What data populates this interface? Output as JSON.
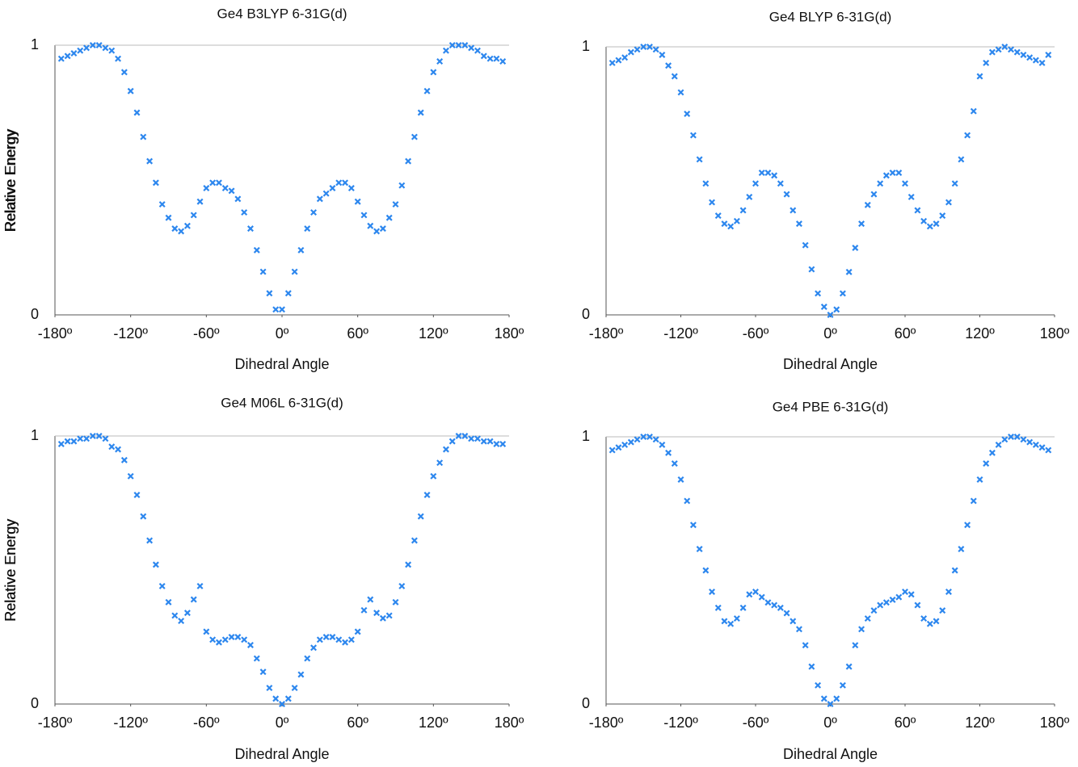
{
  "chart_data": [
    {
      "type": "scatter",
      "title": "Ge4 B3LYP 6-31G(d)",
      "x_label": "Dihedral Angle",
      "y_label": "Relative Energy",
      "color": "#2d87ee",
      "xlim": [
        -180,
        180
      ],
      "ylim": [
        0,
        1
      ],
      "xticks": [
        {
          "value": -180,
          "label": "-180º"
        },
        {
          "value": -120,
          "label": "-120º"
        },
        {
          "value": -60,
          "label": "-60º"
        },
        {
          "value": 0,
          "label": "0º"
        },
        {
          "value": 60,
          "label": "60º"
        },
        {
          "value": 120,
          "label": "120º"
        },
        {
          "value": 180,
          "label": "180º"
        }
      ],
      "yticks": [
        0,
        1
      ],
      "grid": true,
      "x": [
        -175,
        -170,
        -165,
        -160,
        -155,
        -150,
        -145,
        -140,
        -135,
        -130,
        -125,
        -120,
        -115,
        -110,
        -105,
        -100,
        -95,
        -90,
        -85,
        -80,
        -75,
        -70,
        -65,
        -60,
        -55,
        -50,
        -45,
        -40,
        -35,
        -30,
        -25,
        -20,
        -15,
        -10,
        -5,
        0,
        5,
        10,
        15,
        20,
        25,
        30,
        35,
        40,
        45,
        50,
        55,
        60,
        65,
        70,
        75,
        80,
        85,
        90,
        95,
        100,
        105,
        110,
        115,
        120,
        125,
        130,
        135,
        140,
        145,
        150,
        155,
        160,
        165,
        170,
        175
      ],
      "values": [
        0.95,
        0.96,
        0.97,
        0.98,
        0.99,
        1.0,
        1.0,
        0.99,
        0.98,
        0.95,
        0.9,
        0.83,
        0.75,
        0.66,
        0.57,
        0.49,
        0.41,
        0.36,
        0.32,
        0.31,
        0.33,
        0.37,
        0.42,
        0.47,
        0.49,
        0.49,
        0.47,
        0.46,
        0.43,
        0.38,
        0.32,
        0.24,
        0.16,
        0.08,
        0.02,
        0.02,
        0.08,
        0.16,
        0.24,
        0.32,
        0.38,
        0.43,
        0.45,
        0.47,
        0.49,
        0.49,
        0.47,
        0.42,
        0.37,
        0.33,
        0.31,
        0.32,
        0.36,
        0.41,
        0.48,
        0.57,
        0.66,
        0.75,
        0.83,
        0.9,
        0.94,
        0.98,
        1.0,
        1.0,
        1.0,
        0.99,
        0.98,
        0.96,
        0.95,
        0.95,
        0.94
      ]
    },
    {
      "type": "scatter",
      "title": "Ge4 BLYP 6-31G(d)",
      "x_label": "Dihedral Angle",
      "y_label": "Relative Energy",
      "color": "#2d87ee",
      "xlim": [
        -180,
        180
      ],
      "ylim": [
        0,
        1
      ],
      "xticks": [
        {
          "value": -180,
          "label": "-180º"
        },
        {
          "value": -120,
          "label": "-120º"
        },
        {
          "value": -60,
          "label": "-60º"
        },
        {
          "value": 0,
          "label": "0º"
        },
        {
          "value": 60,
          "label": "60º"
        },
        {
          "value": 120,
          "label": "120º"
        },
        {
          "value": 180,
          "label": "180º"
        }
      ],
      "yticks": [
        0,
        1
      ],
      "grid": true,
      "x": [
        -175,
        -170,
        -165,
        -160,
        -155,
        -150,
        -145,
        -140,
        -135,
        -130,
        -125,
        -120,
        -115,
        -110,
        -105,
        -100,
        -95,
        -90,
        -85,
        -80,
        -75,
        -70,
        -65,
        -60,
        -55,
        -50,
        -45,
        -40,
        -35,
        -30,
        -25,
        -20,
        -15,
        -10,
        -5,
        0,
        5,
        10,
        15,
        20,
        25,
        30,
        35,
        40,
        45,
        50,
        55,
        60,
        65,
        70,
        75,
        80,
        85,
        90,
        95,
        100,
        105,
        110,
        115,
        120,
        125,
        130,
        135,
        140,
        145,
        150,
        155,
        160,
        165,
        170,
        175
      ],
      "values": [
        0.94,
        0.95,
        0.96,
        0.98,
        0.99,
        1.0,
        1.0,
        0.99,
        0.97,
        0.93,
        0.89,
        0.83,
        0.75,
        0.67,
        0.58,
        0.49,
        0.42,
        0.37,
        0.34,
        0.33,
        0.35,
        0.39,
        0.44,
        0.49,
        0.53,
        0.53,
        0.52,
        0.49,
        0.45,
        0.39,
        0.34,
        0.26,
        0.17,
        0.08,
        0.03,
        0.0,
        0.02,
        0.08,
        0.16,
        0.25,
        0.34,
        0.41,
        0.45,
        0.49,
        0.52,
        0.53,
        0.53,
        0.49,
        0.44,
        0.39,
        0.35,
        0.33,
        0.34,
        0.37,
        0.42,
        0.49,
        0.58,
        0.67,
        0.76,
        0.89,
        0.94,
        0.98,
        0.99,
        1.0,
        0.99,
        0.98,
        0.97,
        0.96,
        0.95,
        0.94,
        0.97
      ]
    },
    {
      "type": "scatter",
      "title": "Ge4 M06L 6-31G(d)",
      "x_label": "Dihedral Angle",
      "y_label": "Relative Energy",
      "color": "#2d87ee",
      "xlim": [
        -180,
        180
      ],
      "ylim": [
        0,
        1
      ],
      "xticks": [
        {
          "value": -180,
          "label": "-180º"
        },
        {
          "value": -120,
          "label": "-120º"
        },
        {
          "value": -60,
          "label": "-60º"
        },
        {
          "value": 0,
          "label": "0º"
        },
        {
          "value": 60,
          "label": "60º"
        },
        {
          "value": 120,
          "label": "120º"
        },
        {
          "value": 180,
          "label": "180º"
        }
      ],
      "yticks": [
        0,
        1
      ],
      "grid": true,
      "x": [
        -175,
        -170,
        -165,
        -160,
        -155,
        -150,
        -145,
        -140,
        -135,
        -130,
        -125,
        -120,
        -115,
        -110,
        -105,
        -100,
        -95,
        -90,
        -85,
        -80,
        -75,
        -70,
        -65,
        -60,
        -55,
        -50,
        -45,
        -40,
        -35,
        -30,
        -25,
        -20,
        -15,
        -10,
        -5,
        0,
        5,
        10,
        15,
        20,
        25,
        30,
        35,
        40,
        45,
        50,
        55,
        60,
        65,
        70,
        75,
        80,
        85,
        90,
        95,
        100,
        105,
        110,
        115,
        120,
        125,
        130,
        135,
        140,
        145,
        150,
        155,
        160,
        165,
        170,
        175
      ],
      "values": [
        0.97,
        0.98,
        0.98,
        0.99,
        0.99,
        1.0,
        1.0,
        0.99,
        0.96,
        0.95,
        0.91,
        0.85,
        0.78,
        0.7,
        0.61,
        0.52,
        0.44,
        0.38,
        0.33,
        0.31,
        0.34,
        0.39,
        0.44,
        0.27,
        0.24,
        0.23,
        0.24,
        0.25,
        0.25,
        0.24,
        0.22,
        0.17,
        0.12,
        0.06,
        0.02,
        0.0,
        0.02,
        0.06,
        0.11,
        0.17,
        0.21,
        0.24,
        0.25,
        0.25,
        0.24,
        0.23,
        0.24,
        0.27,
        0.35,
        0.39,
        0.34,
        0.32,
        0.33,
        0.38,
        0.44,
        0.52,
        0.61,
        0.7,
        0.78,
        0.85,
        0.9,
        0.95,
        0.98,
        1.0,
        1.0,
        0.99,
        0.99,
        0.98,
        0.98,
        0.97,
        0.97
      ]
    },
    {
      "type": "scatter",
      "title": "Ge4 PBE 6-31G(d)",
      "x_label": "Dihedral Angle",
      "y_label": "Relative Energy",
      "color": "#2d87ee",
      "xlim": [
        -180,
        180
      ],
      "ylim": [
        0,
        1
      ],
      "xticks": [
        {
          "value": -180,
          "label": "-180º"
        },
        {
          "value": -120,
          "label": "-120º"
        },
        {
          "value": -60,
          "label": "-60º"
        },
        {
          "value": 0,
          "label": "0º"
        },
        {
          "value": 60,
          "label": "60º"
        },
        {
          "value": 120,
          "label": "120º"
        },
        {
          "value": 180,
          "label": "180º"
        }
      ],
      "yticks": [
        0,
        1
      ],
      "grid": true,
      "x": [
        -175,
        -170,
        -165,
        -160,
        -155,
        -150,
        -145,
        -140,
        -135,
        -130,
        -125,
        -120,
        -115,
        -110,
        -105,
        -100,
        -95,
        -90,
        -85,
        -80,
        -75,
        -70,
        -65,
        -60,
        -55,
        -50,
        -45,
        -40,
        -35,
        -30,
        -25,
        -20,
        -15,
        -10,
        -5,
        0,
        5,
        10,
        15,
        20,
        25,
        30,
        35,
        40,
        45,
        50,
        55,
        60,
        65,
        70,
        75,
        80,
        85,
        90,
        95,
        100,
        105,
        110,
        115,
        120,
        125,
        130,
        135,
        140,
        145,
        150,
        155,
        160,
        165,
        170,
        175
      ],
      "values": [
        0.95,
        0.96,
        0.97,
        0.98,
        0.99,
        1.0,
        1.0,
        0.99,
        0.97,
        0.94,
        0.9,
        0.84,
        0.76,
        0.67,
        0.58,
        0.5,
        0.42,
        0.36,
        0.31,
        0.3,
        0.32,
        0.36,
        0.41,
        0.42,
        0.4,
        0.38,
        0.37,
        0.36,
        0.34,
        0.31,
        0.28,
        0.22,
        0.14,
        0.07,
        0.02,
        0.0,
        0.02,
        0.07,
        0.14,
        0.22,
        0.28,
        0.32,
        0.35,
        0.37,
        0.38,
        0.39,
        0.4,
        0.42,
        0.41,
        0.37,
        0.32,
        0.3,
        0.31,
        0.35,
        0.42,
        0.5,
        0.58,
        0.67,
        0.76,
        0.84,
        0.9,
        0.94,
        0.97,
        0.99,
        1.0,
        1.0,
        0.99,
        0.98,
        0.97,
        0.96,
        0.95
      ]
    }
  ]
}
